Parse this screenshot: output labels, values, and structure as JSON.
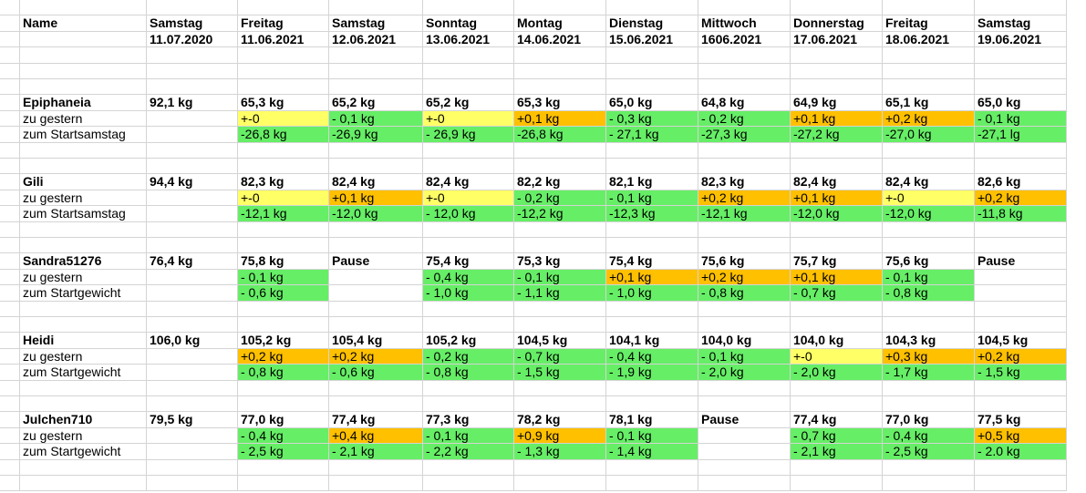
{
  "header": {
    "name": "Name",
    "days": [
      "Samstag",
      "Freitag",
      "Samstag",
      "Sonntag",
      "Montag",
      "Dienstag",
      "Mittwoch",
      "Donnerstag",
      "Freitag",
      "Samstag"
    ],
    "dates": [
      "11.07.2020",
      "11.06.2021",
      "12.06.2021",
      "13.06.2021",
      "14.06.2021",
      "15.06.2021",
      "1606.2021",
      "17.06.2021",
      "18.06.2021",
      "19.06.2021"
    ]
  },
  "colors": {
    "green": "#66ee66",
    "yellow": "#ffff66",
    "orange": "#ffc000",
    "grid": "#d4d4d4"
  },
  "groups": [
    {
      "name": "Epiphaneia",
      "weights": [
        "92,1 kg",
        "65,3 kg",
        "65,2 kg",
        "65,2 kg",
        "65,3 kg",
        "65,0 kg",
        "64,8 kg",
        "64,9 kg",
        "65,1 kg",
        "65,0 kg"
      ],
      "label_diff": "zu gestern",
      "diff": [
        "",
        "+-0",
        "- 0,1 kg",
        "+-0",
        "+0,1 kg",
        "- 0,3 kg",
        "- 0,2 kg",
        "+0,1 kg",
        "+0,2 kg",
        "- 0,1 kg"
      ],
      "diff_colors": [
        "",
        "yellow",
        "green",
        "yellow",
        "orange",
        "green",
        "green",
        "orange",
        "orange",
        "green"
      ],
      "label_total": "zum Startsamstag",
      "total": [
        "",
        "-26,8 kg",
        "-26,9 kg",
        "- 26,9 kg",
        "-26,8 kg",
        "- 27,1 kg",
        "-27,3 kg",
        "-27,2 kg",
        "-27,0 kg",
        "-27,1 lg"
      ],
      "total_colors": [
        "",
        "green",
        "green",
        "green",
        "green",
        "green",
        "green",
        "green",
        "green",
        "green"
      ]
    },
    {
      "name": "Gili",
      "weights": [
        "94,4 kg",
        "82,3 kg",
        "82,4 kg",
        "82,4 kg",
        "82,2 kg",
        "82,1 kg",
        "82,3 kg",
        "82,4 kg",
        "82,4 kg",
        "82,6 kg"
      ],
      "label_diff": "zu gestern",
      "diff": [
        "",
        "+-0",
        "+0,1 kg",
        "+-0",
        "- 0,2 kg",
        "- 0,1 kg",
        "+0,2 kg",
        "+0,1 kg",
        "+-0",
        "+0,2 kg"
      ],
      "diff_colors": [
        "",
        "yellow",
        "orange",
        "yellow",
        "green",
        "green",
        "orange",
        "orange",
        "yellow",
        "orange"
      ],
      "label_total": "zum Startsamstag",
      "total": [
        "",
        "-12,1 kg",
        "-12,0 kg",
        "- 12,0 kg",
        "-12,2 kg",
        "-12,3 kg",
        "-12,1 kg",
        "-12,0 kg",
        "-12,0 kg",
        "-11,8 kg"
      ],
      "total_colors": [
        "",
        "green",
        "green",
        "green",
        "green",
        "green",
        "green",
        "green",
        "green",
        "green"
      ]
    },
    {
      "name": "Sandra51276",
      "weights": [
        "76,4 kg",
        "75,8 kg",
        "Pause",
        "75,4 kg",
        "75,3 kg",
        "75,4 kg",
        "75,6 kg",
        "75,7 kg",
        "75,6 kg",
        "Pause"
      ],
      "label_diff": "zu gestern",
      "diff": [
        "",
        "- 0,1 kg",
        "",
        "- 0,4 kg",
        "- 0,1 kg",
        "+0,1 kg",
        "+0,2 kg",
        "+0,1 kg",
        "- 0,1 kg",
        ""
      ],
      "diff_colors": [
        "",
        "green",
        "",
        "green",
        "green",
        "orange",
        "orange",
        "orange",
        "green",
        ""
      ],
      "label_total": "zum Startgewicht",
      "total": [
        "",
        "- 0,6 kg",
        "",
        "- 1,0 kg",
        "- 1,1 kg",
        "- 1,0 kg",
        "- 0,8 kg",
        "- 0,7 kg",
        "- 0,8 kg",
        ""
      ],
      "total_colors": [
        "",
        "green",
        "",
        "green",
        "green",
        "green",
        "green",
        "green",
        "green",
        ""
      ]
    },
    {
      "name": "Heidi",
      "weights": [
        "106,0 kg",
        "105,2  kg",
        "105,4 kg",
        "105,2 kg",
        "104,5 kg",
        "104,1 kg",
        "104,0 kg",
        "104,0 kg",
        "104,3 kg",
        "104,5 kg"
      ],
      "label_diff": "zu gestern",
      "diff": [
        "",
        "+0,2 kg",
        "+0,2 kg",
        "- 0,2 kg",
        "- 0,7 kg",
        "- 0,4 kg",
        "- 0,1 kg",
        "+-0",
        "+0,3 kg",
        "+0,2 kg"
      ],
      "diff_colors": [
        "",
        "orange",
        "orange",
        "green",
        "green",
        "green",
        "green",
        "yellow",
        "orange",
        "orange"
      ],
      "label_total": "zum Startgewicht",
      "total": [
        "",
        "- 0,8 kg",
        "- 0,6 kg",
        "- 0,8 kg",
        "- 1,5 kg",
        "- 1,9 kg",
        "- 2,0 kg",
        "- 2,0 kg",
        "- 1,7 kg",
        "- 1,5 kg"
      ],
      "total_colors": [
        "",
        "green",
        "green",
        "green",
        "green",
        "green",
        "green",
        "green",
        "green",
        "green"
      ]
    },
    {
      "name": "Julchen710",
      "weights": [
        "79,5 kg",
        "77,0 kg",
        "77,4 kg",
        "77,3 kg",
        "78,2 kg",
        "78,1 kg",
        "Pause",
        "77,4 kg",
        "77,0 kg",
        "77,5 kg"
      ],
      "label_diff": "zu gestern",
      "diff": [
        "",
        "- 0,4 kg",
        "+0,4 kg",
        "- 0,1 kg",
        "+0,9 kg",
        "- 0,1 kg",
        "",
        "- 0,7 kg",
        "- 0,4 kg",
        "+0,5 kg"
      ],
      "diff_colors": [
        "",
        "green",
        "orange",
        "green",
        "orange",
        "green",
        "",
        "green",
        "green",
        "orange"
      ],
      "label_total": "zum Startgewicht",
      "total": [
        "",
        "- 2,5 kg",
        "- 2,1 kg",
        "- 2,2 kg",
        "- 1,3 kg",
        "- 1,4 kg",
        "",
        "- 2,1 kg",
        "- 2,5 kg",
        "- 2.0 kg"
      ],
      "total_colors": [
        "",
        "green",
        "green",
        "green",
        "green",
        "green",
        "",
        "green",
        "green",
        "green"
      ]
    }
  ]
}
